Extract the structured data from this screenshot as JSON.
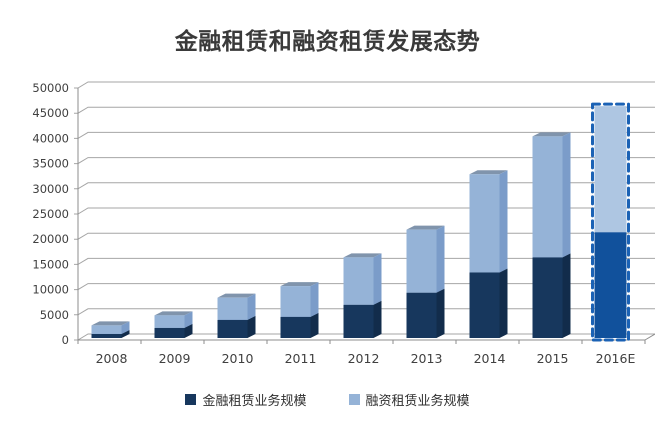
{
  "title": "金融租赁和融资租赁发展态势",
  "colors": {
    "title": "#3a3a3a",
    "gridline": "#a6a6a6",
    "axis": "#8c8c8c",
    "label": "#404040",
    "series1": "#17375d",
    "series1_cap": "#2e5c94",
    "series1_side": "#122c4b",
    "series2": "#95b3d7",
    "series2_cap": "#8094ac",
    "series2_side": "#7b9cc9",
    "forecast_series1": "#11519c",
    "forecast_series2": "#aec6e2",
    "forecast_border": "#1b62b5"
  },
  "chart_data": {
    "type": "bar",
    "stacked": true,
    "title": "金融租赁和融资租赁发展态势",
    "categories": [
      "2008",
      "2009",
      "2010",
      "2011",
      "2012",
      "2013",
      "2014",
      "2015",
      "2016E"
    ],
    "series": [
      {
        "name": "金融租赁业务规模",
        "values": [
          800,
          2000,
          3600,
          4200,
          6600,
          9000,
          13000,
          16000,
          21000
        ]
      },
      {
        "name": "融资租赁业务规模",
        "values": [
          1700,
          2500,
          4400,
          6100,
          9400,
          12500,
          19500,
          24000,
          25000
        ]
      }
    ],
    "stack_totals": [
      2500,
      4500,
      8000,
      10300,
      16000,
      21500,
      32500,
      40000,
      46000
    ],
    "ylim": [
      0,
      50000
    ],
    "ytick_step": 5000,
    "yticks": [
      "0",
      "5000",
      "10000",
      "15000",
      "20000",
      "25000",
      "30000",
      "35000",
      "40000",
      "45000",
      "50000"
    ],
    "grid": true,
    "legend_position": "bottom",
    "forecast_category": "2016E",
    "style": "3d-stacked-column"
  },
  "legend": {
    "items": [
      {
        "label": "金融租赁业务规模",
        "color": "#17375d"
      },
      {
        "label": "融资租赁业务规模",
        "color": "#95b3d7"
      }
    ]
  }
}
